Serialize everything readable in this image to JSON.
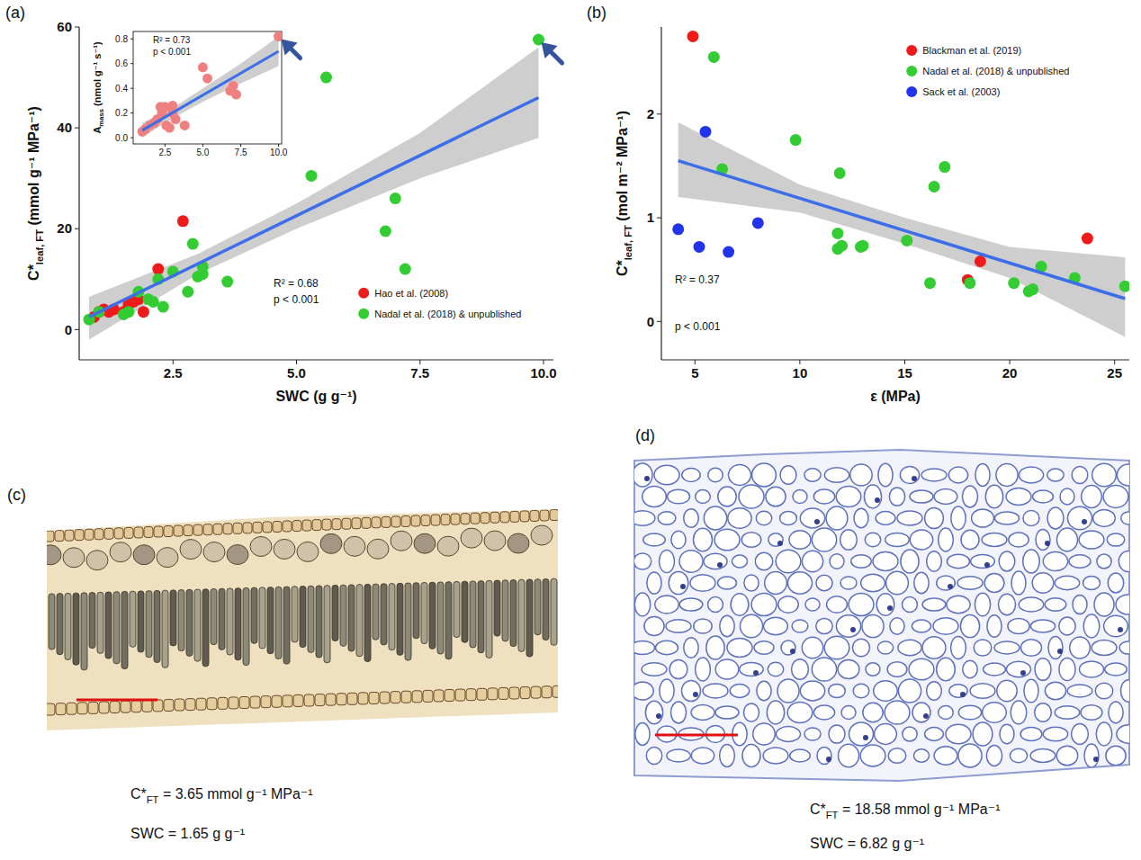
{
  "chart_data": [
    {
      "type": "scatter",
      "label": "(a)",
      "x_label": "SWC (g g⁻¹)",
      "y_label": [
        "C*",
        "leaf, FT",
        " (mmol g⁻¹ MPa⁻¹)"
      ],
      "xlim": [
        0.6,
        10.2
      ],
      "ylim": [
        -6,
        60
      ],
      "xticks": [
        2.5,
        {
          "value": 5,
          "label": "5.0"
        },
        7.5,
        {
          "value": 10,
          "label": "10.0"
        }
      ],
      "yticks": [
        0,
        20,
        40,
        60
      ],
      "series": [
        {
          "name": "Hao et al. (2008)",
          "color": "#f01a1a",
          "marker": "circle",
          "x": [
            0.9,
            1.0,
            1.1,
            1.2,
            1.3,
            1.5,
            1.6,
            1.7,
            1.8,
            1.9,
            2.2,
            2.7
          ],
          "values": [
            2.5,
            3.5,
            4,
            3.5,
            4,
            3.5,
            5,
            5.5,
            6,
            3.5,
            12,
            21.5
          ]
        },
        {
          "name": "Nadal et al. (2018) & unpublished",
          "color": "#33cc33",
          "marker": "circle",
          "x": [
            0.8,
            1.0,
            1.5,
            1.6,
            1.8,
            2.0,
            2.1,
            2.2,
            2.3,
            2.5,
            2.8,
            2.9,
            3.0,
            3.1,
            3.1,
            3.6,
            5.3,
            5.6,
            6.8,
            7.0,
            7.2,
            9.9
          ],
          "values": [
            2,
            3.5,
            3,
            3.5,
            7.5,
            6,
            5.5,
            10,
            4.5,
            11.5,
            7.5,
            17,
            10.5,
            11,
            12.5,
            9.5,
            30.5,
            50,
            19.5,
            26,
            12,
            57.5
          ]
        }
      ],
      "fit": {
        "x": [
          0.8,
          9.9
        ],
        "values": [
          2.5,
          46
        ]
      },
      "band": {
        "x": [
          0.8,
          3,
          5,
          7.5,
          9.9
        ],
        "lower": [
          -2,
          11,
          20,
          30,
          38
        ],
        "upper": [
          6.5,
          15,
          25,
          39,
          56
        ]
      },
      "annotations": [
        "R² = 0.68",
        "p < 0.001"
      ],
      "legend": "lower right"
    },
    {
      "type": "scatter",
      "y_label": [
        "A",
        "mass",
        " (nmol g⁻¹ s⁻¹)"
      ],
      "xlim": [
        0.4,
        10.2
      ],
      "ylim": [
        -0.05,
        0.86
      ],
      "xticks": [
        2.5,
        {
          "value": 5,
          "label": "5.0"
        },
        7.5,
        {
          "value": 10,
          "label": "10.0"
        }
      ],
      "yticks": [
        {
          "value": 0,
          "label": "0.0"
        },
        0.2,
        0.4,
        0.6,
        0.8
      ],
      "series": [
        {
          "color": "#f08080",
          "marker": "circle",
          "x": [
            1.0,
            1.2,
            1.5,
            1.8,
            2.0,
            2.2,
            2.3,
            2.5,
            2.6,
            2.8,
            3.0,
            3.0,
            3.2,
            3.8,
            5.0,
            5.3,
            6.8,
            7.0,
            7.2,
            10.0
          ],
          "values": [
            0.05,
            0.07,
            0.1,
            0.12,
            0.15,
            0.25,
            0.2,
            0.25,
            0.1,
            0.08,
            0.2,
            0.26,
            0.15,
            0.1,
            0.57,
            0.48,
            0.38,
            0.42,
            0.35,
            0.82
          ]
        }
      ],
      "fit": {
        "x": [
          1.0,
          10.0
        ],
        "values": [
          0.06,
          0.7
        ]
      },
      "band": {
        "x": [
          1,
          3,
          5,
          7.5,
          10
        ],
        "lower": [
          0.0,
          0.16,
          0.29,
          0.44,
          0.58
        ],
        "upper": [
          0.12,
          0.24,
          0.4,
          0.6,
          0.82
        ]
      },
      "annotations": [
        "R² = 0.73",
        "p < 0.001"
      ]
    },
    {
      "type": "scatter",
      "label": "(b)",
      "x_label": "ε (MPa)",
      "y_label": [
        "C*",
        "leaf, FT",
        " (mol m⁻² MPa⁻¹)"
      ],
      "xlim": [
        3.4,
        25.7
      ],
      "ylim": [
        -0.37,
        2.84
      ],
      "xticks": [
        5,
        10,
        15,
        20,
        25
      ],
      "yticks": [
        0,
        1,
        2
      ],
      "series": [
        {
          "name": "Blackman et al. (2019)",
          "color": "#f01a1a",
          "marker": "circle",
          "x": [
            4.9,
            18.0,
            18.6,
            23.7
          ],
          "values": [
            2.75,
            0.4,
            0.58,
            0.8
          ]
        },
        {
          "name": "Nadal et al. (2018) & unpublished",
          "color": "#33cc33",
          "marker": "circle",
          "x": [
            5.9,
            6.3,
            9.8,
            11.8,
            11.8,
            11.9,
            12.0,
            12.9,
            13.0,
            15.1,
            16.2,
            16.4,
            16.9,
            18.1,
            20.2,
            20.9,
            21.1,
            21.5,
            23.1,
            25.5
          ],
          "values": [
            2.55,
            1.47,
            1.75,
            0.7,
            0.85,
            1.43,
            0.73,
            0.72,
            0.73,
            0.78,
            0.37,
            1.3,
            1.49,
            0.37,
            0.37,
            0.29,
            0.31,
            0.53,
            0.42,
            0.34
          ]
        },
        {
          "name": "Sack et al. (2003)",
          "color": "#2233ee",
          "marker": "circle",
          "x": [
            4.2,
            5.2,
            5.5,
            6.6,
            8.0
          ],
          "values": [
            0.89,
            0.72,
            1.83,
            0.67,
            0.95
          ]
        }
      ],
      "fit": {
        "x": [
          4.2,
          25.5
        ],
        "values": [
          1.55,
          0.22
        ]
      },
      "band": {
        "x": [
          4.2,
          10,
          15,
          20,
          25.5
        ],
        "lower": [
          1.2,
          1.05,
          0.75,
          0.42,
          -0.15
        ],
        "upper": [
          1.92,
          1.32,
          1.0,
          0.72,
          0.62
        ]
      },
      "annotations": [
        "R² = 0.37",
        "p < 0.001"
      ],
      "legend": "upper right"
    }
  ],
  "images": [
    {
      "label": "(c)",
      "caption": [
        [
          "C*",
          "FT",
          " = 3.65 mmol g⁻¹ MPa⁻¹"
        ],
        [
          "SWC = 1.65 g g⁻¹"
        ]
      ]
    },
    {
      "label": "(d)",
      "caption": [
        [
          "C*",
          "FT",
          " = 18.58 mmol g⁻¹ MPa⁻¹"
        ],
        [
          "SWC = 6.82 g g⁻¹"
        ]
      ]
    }
  ]
}
